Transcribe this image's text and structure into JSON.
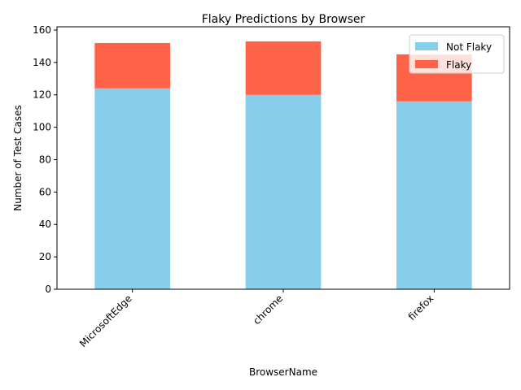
{
  "chart_data": {
    "type": "bar",
    "stacked": true,
    "title": "Flaky Predictions by Browser",
    "xlabel": "BrowserName",
    "ylabel": "Number of Test Cases",
    "categories": [
      "MicrosoftEdge",
      "chrome",
      "firefox"
    ],
    "series": [
      {
        "name": "Not Flaky",
        "values": [
          124,
          120,
          116
        ],
        "color": "#87CEEB"
      },
      {
        "name": "Flaky",
        "values": [
          28,
          33,
          29
        ],
        "color": "#FF6347"
      }
    ],
    "ylim": [
      0,
      162
    ],
    "yticks": [
      0,
      20,
      40,
      60,
      80,
      100,
      120,
      140,
      160
    ],
    "grid": false,
    "legend": "top-right",
    "xtick_rotation": 45
  }
}
